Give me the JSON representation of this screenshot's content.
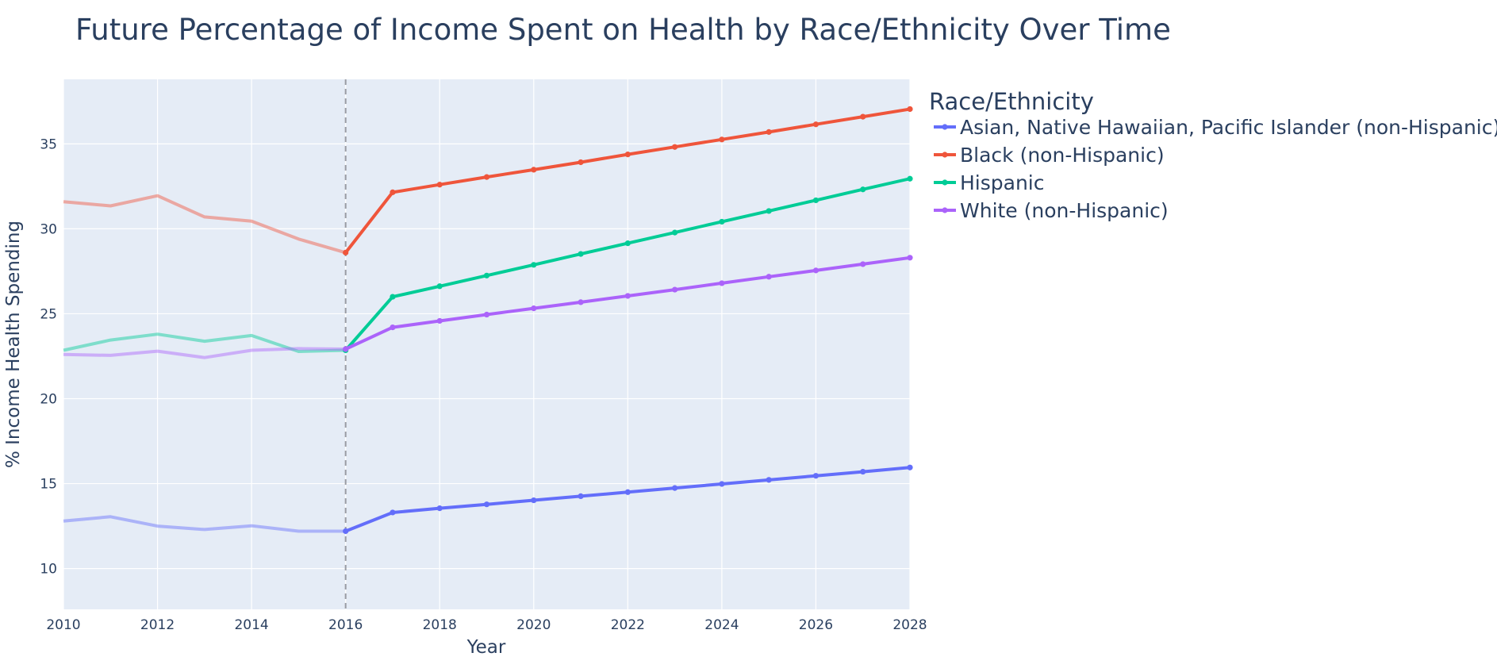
{
  "chart_data": {
    "type": "line",
    "title": "Future Percentage of Income Spent on Health by Race/Ethnicity Over Time",
    "xlabel": "Year",
    "ylabel": "% Income Health Spending",
    "xlim": [
      2010,
      2028
    ],
    "ylim": [
      7.6,
      38.8
    ],
    "x_ticks": [
      2010,
      2012,
      2014,
      2016,
      2018,
      2020,
      2022,
      2024,
      2026,
      2028
    ],
    "y_ticks": [
      10,
      15,
      20,
      25,
      30,
      35
    ],
    "grid": true,
    "plot_background": "#e5ecf6",
    "divider_x": 2016,
    "legend": {
      "title": "Race/Ethnicity",
      "placement": "right"
    },
    "series": [
      {
        "name": "Asian, Native Hawaiian, Pacific Islander (non-Hispanic)",
        "color": "#636efa",
        "historical": {
          "x": [
            2010,
            2011,
            2012,
            2013,
            2014,
            2015,
            2016
          ],
          "y": [
            12.8,
            13.05,
            12.5,
            12.3,
            12.52,
            12.2,
            12.2
          ]
        },
        "projected": {
          "x": [
            2016,
            2017,
            2018,
            2019,
            2020,
            2021,
            2022,
            2023,
            2024,
            2025,
            2026,
            2027,
            2028
          ],
          "y": [
            12.2,
            13.3,
            13.55,
            13.78,
            14.02,
            14.26,
            14.5,
            14.74,
            14.98,
            15.22,
            15.46,
            15.7,
            15.95
          ]
        }
      },
      {
        "name": "Black (non-Hispanic)",
        "color": "#ef553b",
        "historical": {
          "x": [
            2010,
            2011,
            2012,
            2013,
            2014,
            2015,
            2016
          ],
          "y": [
            31.6,
            31.35,
            31.95,
            30.7,
            30.45,
            29.4,
            28.6
          ]
        },
        "projected": {
          "x": [
            2016,
            2017,
            2018,
            2019,
            2020,
            2021,
            2022,
            2023,
            2024,
            2025,
            2026,
            2027,
            2028
          ],
          "y": [
            28.6,
            32.15,
            32.6,
            33.05,
            33.48,
            33.92,
            34.38,
            34.82,
            35.26,
            35.7,
            36.15,
            36.6,
            37.05
          ]
        }
      },
      {
        "name": "Hispanic",
        "color": "#00cc96",
        "historical": {
          "x": [
            2010,
            2011,
            2012,
            2013,
            2014,
            2015,
            2016
          ],
          "y": [
            22.85,
            23.45,
            23.8,
            23.38,
            23.72,
            22.78,
            22.85
          ]
        },
        "projected": {
          "x": [
            2016,
            2017,
            2018,
            2019,
            2020,
            2021,
            2022,
            2023,
            2024,
            2025,
            2026,
            2027,
            2028
          ],
          "y": [
            22.85,
            26.0,
            26.62,
            27.25,
            27.88,
            28.52,
            29.15,
            29.78,
            30.42,
            31.05,
            31.68,
            32.32,
            32.95
          ]
        }
      },
      {
        "name": "White (non-Hispanic)",
        "color": "#ab63fa",
        "historical": {
          "x": [
            2010,
            2011,
            2012,
            2013,
            2014,
            2015,
            2016
          ],
          "y": [
            22.6,
            22.55,
            22.8,
            22.42,
            22.85,
            22.95,
            22.92
          ]
        },
        "projected": {
          "x": [
            2016,
            2017,
            2018,
            2019,
            2020,
            2021,
            2022,
            2023,
            2024,
            2025,
            2026,
            2027,
            2028
          ],
          "y": [
            22.92,
            24.2,
            24.58,
            24.95,
            25.32,
            25.68,
            26.05,
            26.42,
            26.8,
            27.18,
            27.55,
            27.92,
            28.3
          ]
        }
      }
    ]
  }
}
